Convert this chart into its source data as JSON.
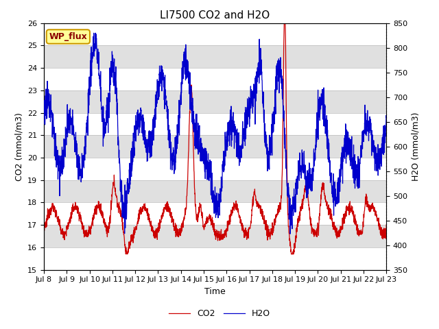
{
  "title": "LI7500 CO2 and H2O",
  "xlabel": "Time",
  "ylabel_left": "CO2 (mmol/m3)",
  "ylabel_right": "H2O (mmol/m3)",
  "ylim_left": [
    15.0,
    26.0
  ],
  "ylim_right": [
    350,
    850
  ],
  "yticks_left": [
    15.0,
    16.0,
    17.0,
    18.0,
    19.0,
    20.0,
    21.0,
    22.0,
    23.0,
    24.0,
    25.0,
    26.0
  ],
  "yticks_right": [
    350,
    400,
    450,
    500,
    550,
    600,
    650,
    700,
    750,
    800,
    850
  ],
  "xtick_labels": [
    "Jul 8",
    "Jul 9",
    "Jul 10",
    "Jul 11",
    "Jul 12",
    "Jul 13",
    "Jul 14",
    "Jul 15",
    "Jul 16",
    "Jul 17",
    "Jul 18",
    "Jul 19",
    "Jul 20",
    "Jul 21",
    "Jul 22",
    "Jul 23"
  ],
  "co2_color": "#CC0000",
  "h2o_color": "#0000CC",
  "annotation_text": "WP_flux",
  "annotation_bg": "#FFFF99",
  "annotation_border": "#CC9900",
  "legend_co2": "CO2",
  "legend_h2o": "H2O",
  "background_color": "#FFFFFF",
  "band_color": "#E0E0E0",
  "title_fontsize": 11,
  "axis_label_fontsize": 9,
  "tick_fontsize": 8
}
